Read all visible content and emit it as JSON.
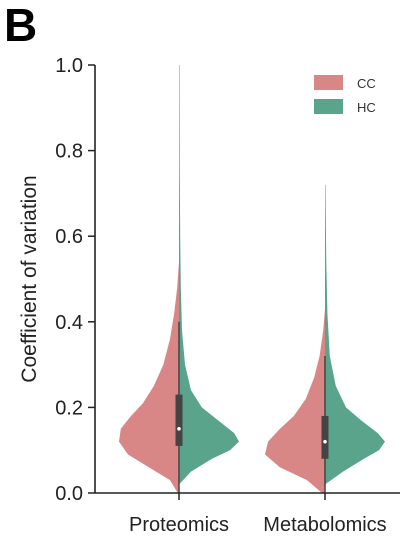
{
  "panel_label": "B",
  "colors": {
    "CC": "#d98686",
    "HC": "#5aa48c",
    "box": "#444444",
    "median": "#ffffff",
    "axis": "#222222"
  },
  "chart_data": {
    "type": "violin",
    "split": true,
    "title": "",
    "xlabel": "",
    "ylabel": "Coefficient of variation",
    "ylim": [
      0,
      1.0
    ],
    "yticks": [
      0.0,
      0.2,
      0.4,
      0.6,
      0.8,
      1.0
    ],
    "ytick_labels": [
      "0.0",
      "0.2",
      "0.4",
      "0.6",
      "0.8",
      "1.0"
    ],
    "categories": [
      "Proteomics",
      "Metabolomics"
    ],
    "legend": {
      "position": "top-right",
      "entries": [
        "CC",
        "HC"
      ]
    },
    "series": [
      {
        "name": "CC",
        "color": "#d98686",
        "groups": [
          {
            "category": "Proteomics",
            "min": 0.0,
            "q1": 0.11,
            "median": 0.15,
            "q3": 0.23,
            "whisker_high": 0.4,
            "max": 0.54,
            "density": [
              [
                0.0,
                0.02
              ],
              [
                0.03,
                0.15
              ],
              [
                0.06,
                0.5
              ],
              [
                0.09,
                0.85
              ],
              [
                0.12,
                1.0
              ],
              [
                0.15,
                0.97
              ],
              [
                0.18,
                0.8
              ],
              [
                0.21,
                0.6
              ],
              [
                0.25,
                0.42
              ],
              [
                0.3,
                0.26
              ],
              [
                0.36,
                0.15
              ],
              [
                0.42,
                0.08
              ],
              [
                0.48,
                0.03
              ],
              [
                0.54,
                0.0
              ]
            ]
          },
          {
            "category": "Metabolomics",
            "min": 0.0,
            "q1": 0.08,
            "median": 0.12,
            "q3": 0.18,
            "whisker_high": 0.32,
            "max": 0.43,
            "density": [
              [
                0.0,
                0.05
              ],
              [
                0.03,
                0.3
              ],
              [
                0.06,
                0.75
              ],
              [
                0.09,
                1.0
              ],
              [
                0.12,
                0.95
              ],
              [
                0.15,
                0.75
              ],
              [
                0.18,
                0.52
              ],
              [
                0.22,
                0.32
              ],
              [
                0.27,
                0.18
              ],
              [
                0.32,
                0.09
              ],
              [
                0.38,
                0.03
              ],
              [
                0.43,
                0.0
              ]
            ]
          }
        ]
      },
      {
        "name": "HC",
        "color": "#5aa48c",
        "groups": [
          {
            "category": "Proteomics",
            "min": 0.02,
            "max": 1.0,
            "density": [
              [
                0.02,
                0.0
              ],
              [
                0.05,
                0.2
              ],
              [
                0.08,
                0.55
              ],
              [
                0.1,
                0.85
              ],
              [
                0.12,
                1.0
              ],
              [
                0.14,
                0.92
              ],
              [
                0.17,
                0.65
              ],
              [
                0.2,
                0.38
              ],
              [
                0.24,
                0.2
              ],
              [
                0.3,
                0.1
              ],
              [
                0.38,
                0.05
              ],
              [
                0.48,
                0.03
              ],
              [
                0.6,
                0.02
              ],
              [
                0.75,
                0.012
              ],
              [
                1.0,
                0.008
              ]
            ]
          },
          {
            "category": "Metabolomics",
            "min": 0.02,
            "max": 0.72,
            "density": [
              [
                0.02,
                0.0
              ],
              [
                0.05,
                0.3
              ],
              [
                0.08,
                0.65
              ],
              [
                0.1,
                0.9
              ],
              [
                0.12,
                1.0
              ],
              [
                0.14,
                0.88
              ],
              [
                0.17,
                0.6
              ],
              [
                0.2,
                0.35
              ],
              [
                0.25,
                0.18
              ],
              [
                0.32,
                0.08
              ],
              [
                0.42,
                0.04
              ],
              [
                0.55,
                0.02
              ],
              [
                0.72,
                0.008
              ]
            ]
          }
        ]
      }
    ]
  }
}
